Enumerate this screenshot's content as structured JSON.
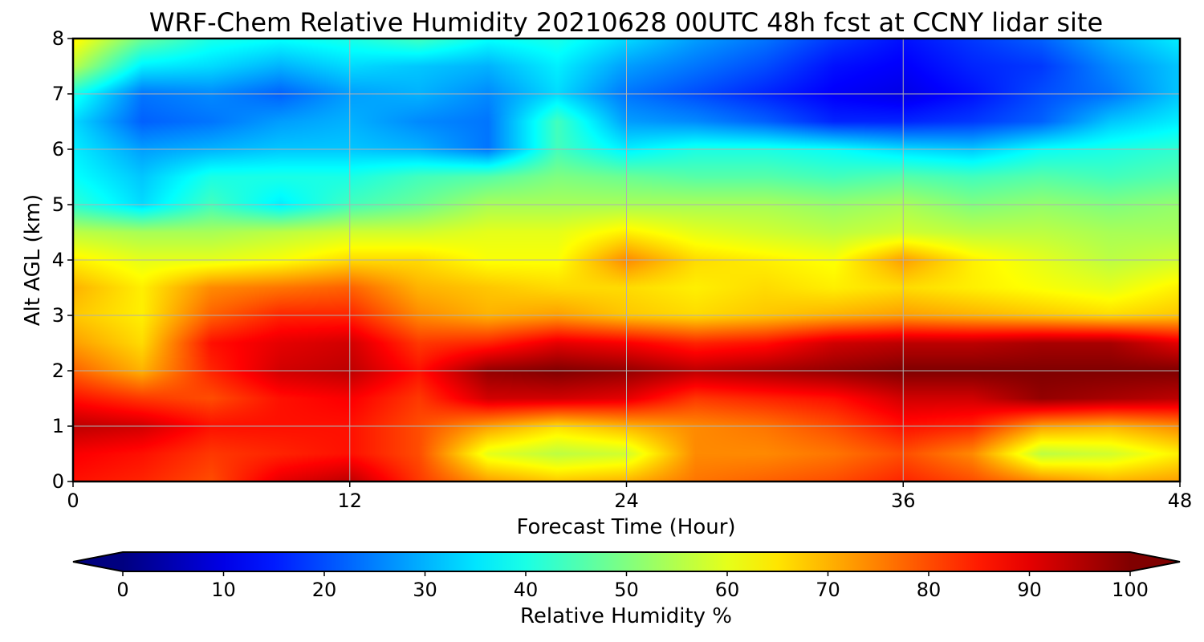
{
  "chart_data": {
    "type": "heatmap",
    "title": "WRF-Chem Relative Humidity 20210628 00UTC 48h fcst at CCNY lidar site",
    "xlabel": "Forecast Time (Hour)",
    "ylabel": "Alt AGL (km)",
    "xlim": [
      0,
      48
    ],
    "ylim": [
      0,
      8
    ],
    "x_ticks": [
      0,
      12,
      24,
      36,
      48
    ],
    "y_ticks": [
      0,
      1,
      2,
      3,
      4,
      5,
      6,
      7,
      8
    ],
    "grid": true,
    "colormap": "jet",
    "colorbar": {
      "label": "Relative Humidity %",
      "range": [
        0,
        100
      ],
      "ticks": [
        0,
        10,
        20,
        30,
        40,
        50,
        60,
        70,
        80,
        90,
        100
      ],
      "extend": "both",
      "orientation": "horizontal",
      "placement": "bottom"
    },
    "x": [
      0,
      3,
      6,
      9,
      12,
      15,
      18,
      21,
      24,
      27,
      30,
      33,
      36,
      39,
      42,
      45,
      48
    ],
    "y": [
      0,
      0.5,
      1,
      1.5,
      2,
      2.5,
      3,
      3.5,
      4,
      4.5,
      5,
      5.5,
      6,
      6.5,
      7,
      7.5,
      8
    ],
    "z": [
      [
        86,
        84,
        80,
        90,
        94,
        82,
        72,
        68,
        70,
        76,
        78,
        80,
        84,
        80,
        74,
        70,
        72
      ],
      [
        88,
        86,
        82,
        84,
        86,
        80,
        60,
        56,
        58,
        74,
        74,
        76,
        80,
        74,
        56,
        58,
        64
      ],
      [
        94,
        92,
        86,
        86,
        86,
        80,
        72,
        66,
        70,
        74,
        76,
        80,
        86,
        84,
        72,
        70,
        74
      ],
      [
        86,
        82,
        80,
        86,
        88,
        82,
        92,
        92,
        90,
        82,
        84,
        86,
        92,
        92,
        98,
        96,
        94
      ],
      [
        78,
        70,
        84,
        92,
        94,
        86,
        98,
        100,
        98,
        94,
        96,
        98,
        100,
        100,
        100,
        100,
        100
      ],
      [
        72,
        66,
        86,
        90,
        92,
        82,
        84,
        90,
        88,
        84,
        86,
        92,
        94,
        94,
        96,
        96,
        90
      ],
      [
        68,
        64,
        78,
        84,
        84,
        74,
        70,
        72,
        68,
        66,
        68,
        70,
        72,
        70,
        68,
        66,
        68
      ],
      [
        70,
        64,
        74,
        76,
        78,
        70,
        68,
        66,
        66,
        64,
        66,
        64,
        66,
        64,
        62,
        60,
        64
      ],
      [
        64,
        60,
        60,
        62,
        66,
        66,
        62,
        62,
        74,
        66,
        64,
        62,
        72,
        64,
        60,
        56,
        58
      ],
      [
        56,
        54,
        54,
        56,
        58,
        58,
        60,
        60,
        64,
        60,
        58,
        56,
        58,
        56,
        56,
        54,
        54
      ],
      [
        42,
        34,
        44,
        36,
        44,
        48,
        54,
        54,
        54,
        54,
        54,
        52,
        54,
        50,
        52,
        50,
        52
      ],
      [
        38,
        32,
        40,
        40,
        40,
        44,
        46,
        50,
        48,
        46,
        46,
        44,
        46,
        44,
        46,
        44,
        46
      ],
      [
        36,
        28,
        30,
        32,
        32,
        30,
        24,
        44,
        36,
        40,
        40,
        38,
        34,
        32,
        38,
        40,
        42
      ],
      [
        34,
        22,
        24,
        28,
        30,
        26,
        24,
        44,
        28,
        26,
        22,
        16,
        16,
        18,
        22,
        32,
        36
      ],
      [
        40,
        24,
        26,
        22,
        28,
        30,
        26,
        34,
        24,
        20,
        16,
        12,
        10,
        14,
        20,
        24,
        32
      ],
      [
        56,
        36,
        34,
        30,
        34,
        32,
        30,
        36,
        28,
        24,
        20,
        14,
        12,
        16,
        18,
        26,
        32
      ],
      [
        64,
        48,
        40,
        38,
        40,
        44,
        38,
        40,
        34,
        28,
        24,
        18,
        14,
        18,
        22,
        30,
        36
      ]
    ]
  }
}
